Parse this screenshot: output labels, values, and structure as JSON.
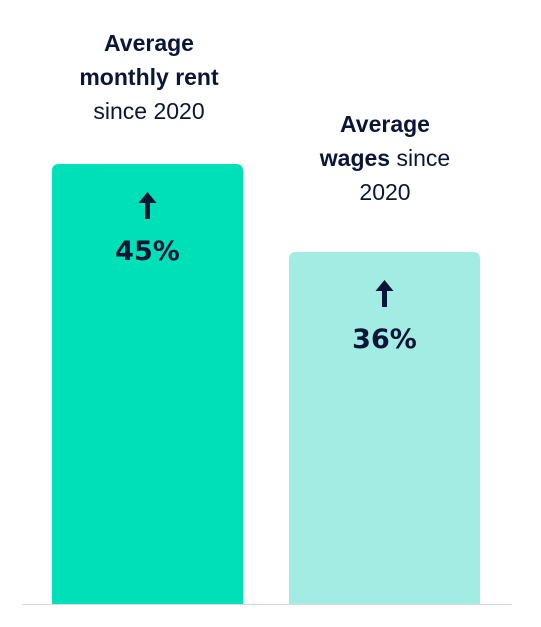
{
  "colors": {
    "text": "#0b1537",
    "baseline": "#d9d9d9",
    "bar_rent": "#00e0b8",
    "bar_wages": "#a3ece4"
  },
  "labels": {
    "rent": {
      "line1_bold": "Average",
      "line2_bold": "monthly rent",
      "line3_regular": "since 2020"
    },
    "wages": {
      "line1_bold": "Average",
      "line2_bold": "wages",
      "line2_regular": " since",
      "line3_regular": "2020"
    }
  },
  "chart_data": {
    "type": "bar",
    "categories": [
      "Average monthly rent since 2020",
      "Average wages since 2020"
    ],
    "values": [
      45,
      36
    ],
    "value_labels": [
      "45%",
      "36%"
    ],
    "ylim": [
      0,
      45
    ],
    "icons": [
      "arrow-up-icon",
      "arrow-up-icon"
    ],
    "grid": false,
    "legend": "none"
  }
}
